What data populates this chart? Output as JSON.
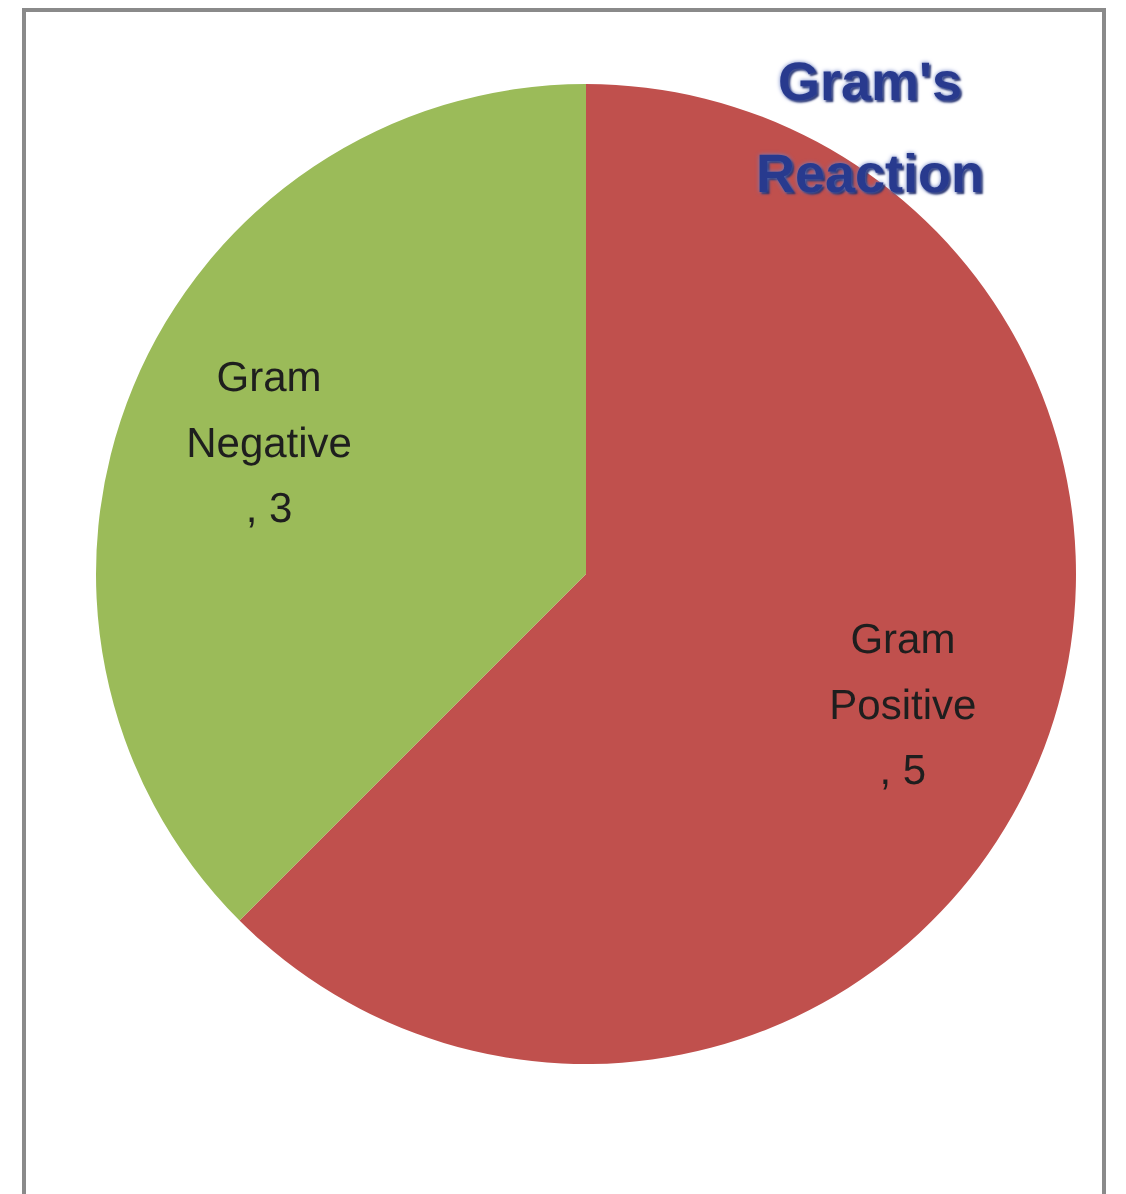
{
  "chart_data": {
    "type": "pie",
    "title": "Gram's Reaction",
    "categories": [
      "Gram Positive",
      "Gram Negative"
    ],
    "values": [
      5,
      3
    ],
    "colors": [
      "#c0504d",
      "#9bbb59"
    ],
    "value_labels": [
      ", 5",
      ", 3"
    ]
  }
}
